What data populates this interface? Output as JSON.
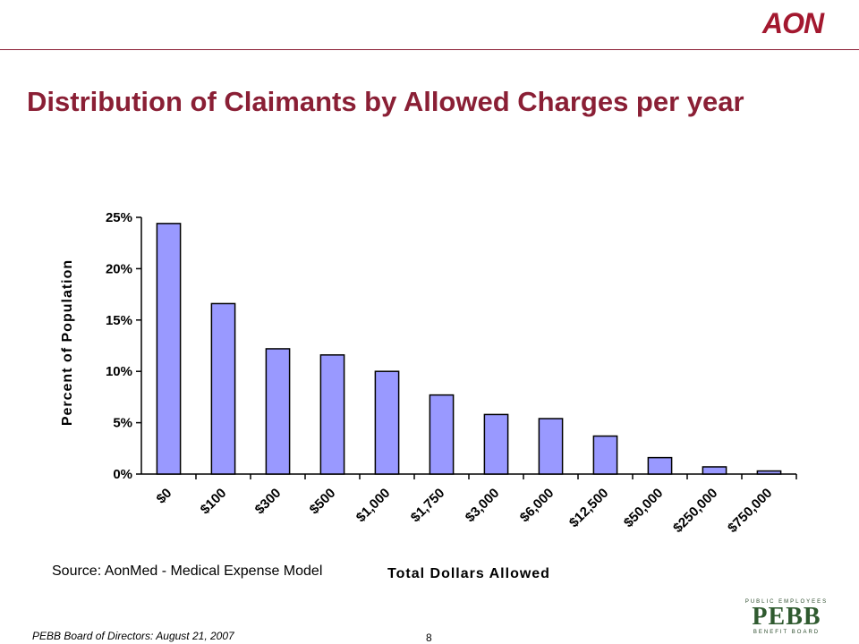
{
  "header": {
    "logo_text": "AON",
    "title": "Distribution of Claimants by Allowed Charges per year"
  },
  "chart_data": {
    "type": "bar",
    "categories": [
      "$0",
      "$100",
      "$300",
      "$500",
      "$1,000",
      "$1,750",
      "$3,000",
      "$6,000",
      "$12,500",
      "$50,000",
      "$250,000",
      "$750,000"
    ],
    "values": [
      24.4,
      16.6,
      12.2,
      11.6,
      10.0,
      7.7,
      5.8,
      5.4,
      3.7,
      1.6,
      0.7,
      0.3
    ],
    "xlabel": "Total Dollars Allowed",
    "ylabel": "Percent of Population",
    "ylim": [
      0,
      25
    ],
    "yticks": [
      "0%",
      "5%",
      "10%",
      "15%",
      "20%",
      "25%"
    ],
    "grid": false,
    "bar_color": "#9999ff"
  },
  "source": "Source:  AonMed - Medical Expense Model",
  "footer": {
    "text": "PEBB Board of Directors:  August 21, 2007",
    "page_number": "8"
  },
  "pebb_logo": {
    "top": "PUBLIC EMPLOYEES",
    "main": "PEBB",
    "bottom": "BENEFIT BOARD"
  }
}
